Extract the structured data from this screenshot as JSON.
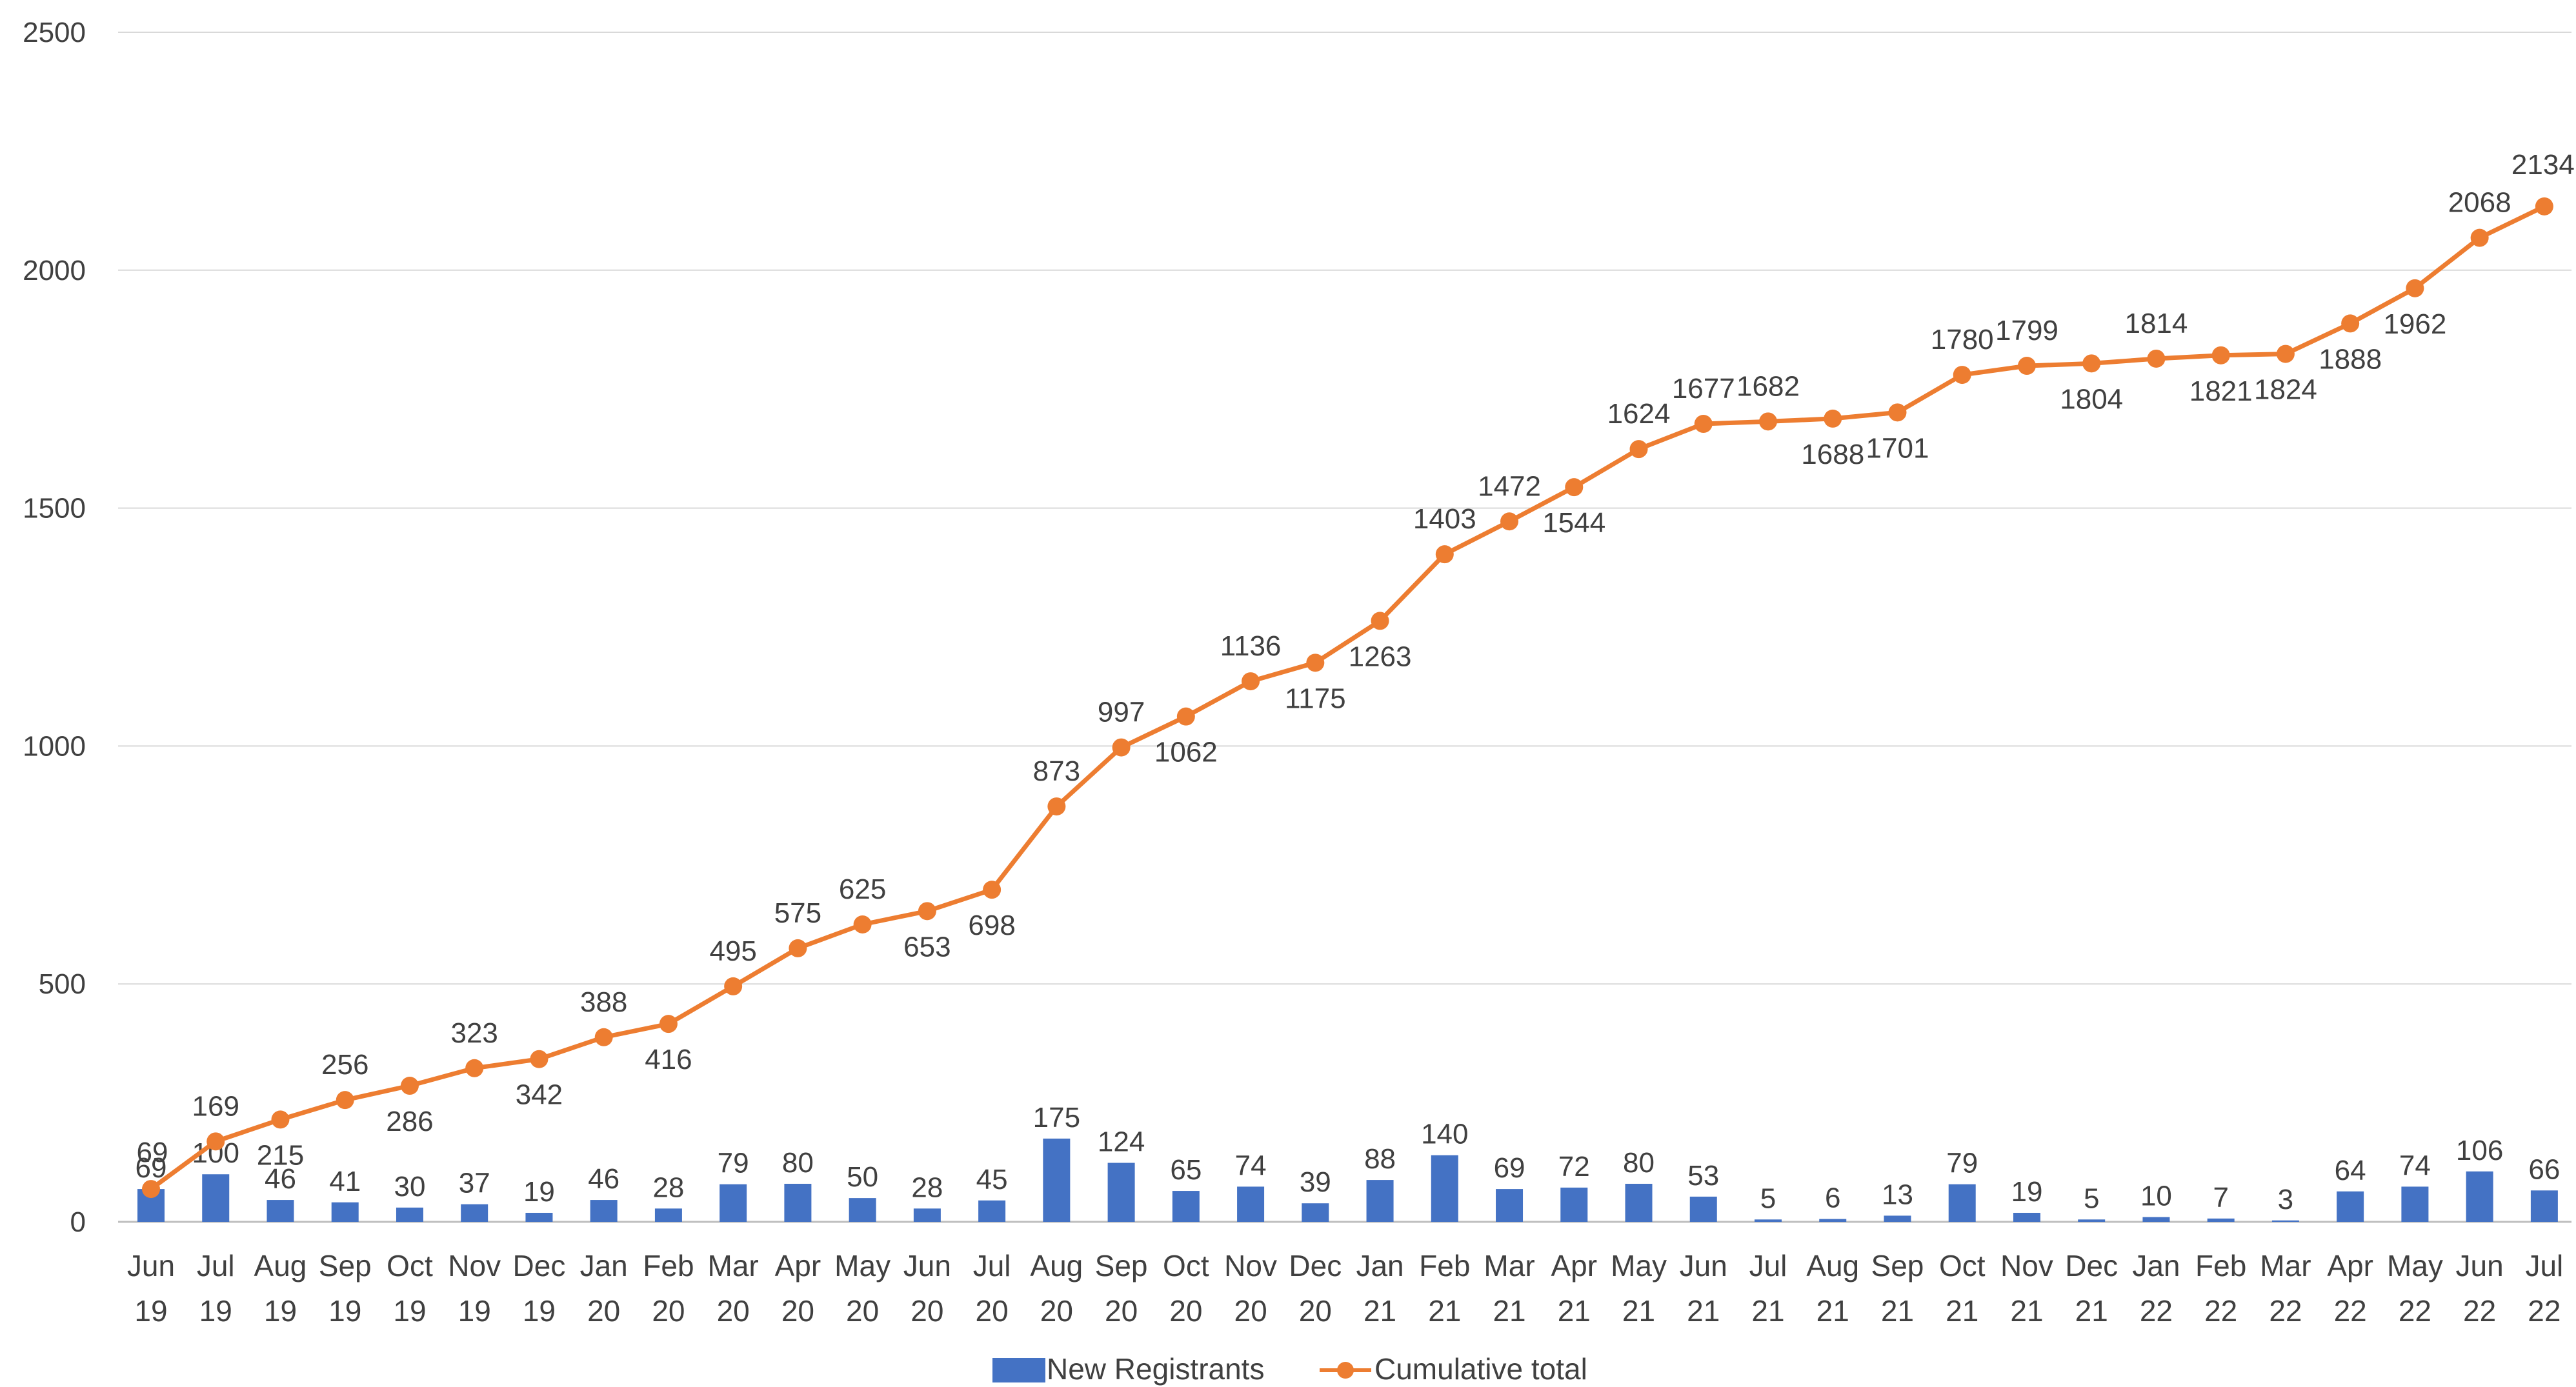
{
  "chart_data": {
    "type": "bar+line",
    "title": "",
    "xlabel": "",
    "ylabel": "",
    "ylim": [
      0,
      2500
    ],
    "yticks": [
      0,
      500,
      1000,
      1500,
      2000,
      2500
    ],
    "grid": "horizontal",
    "legend_position": "bottom",
    "categories": [
      [
        "Jun",
        "19"
      ],
      [
        "Jul",
        "19"
      ],
      [
        "Aug",
        "19"
      ],
      [
        "Sep",
        "19"
      ],
      [
        "Oct",
        "19"
      ],
      [
        "Nov",
        "19"
      ],
      [
        "Dec",
        "19"
      ],
      [
        "Jan",
        "20"
      ],
      [
        "Feb",
        "20"
      ],
      [
        "Mar",
        "20"
      ],
      [
        "Apr",
        "20"
      ],
      [
        "May",
        "20"
      ],
      [
        "Jun",
        "20"
      ],
      [
        "Jul",
        "20"
      ],
      [
        "Aug",
        "20"
      ],
      [
        "Sep",
        "20"
      ],
      [
        "Oct",
        "20"
      ],
      [
        "Nov",
        "20"
      ],
      [
        "Dec",
        "20"
      ],
      [
        "Jan",
        "21"
      ],
      [
        "Feb",
        "21"
      ],
      [
        "Mar",
        "21"
      ],
      [
        "Apr",
        "21"
      ],
      [
        "May",
        "21"
      ],
      [
        "Jun",
        "21"
      ],
      [
        "Jul",
        "21"
      ],
      [
        "Aug",
        "21"
      ],
      [
        "Sep",
        "21"
      ],
      [
        "Oct",
        "21"
      ],
      [
        "Nov",
        "21"
      ],
      [
        "Dec",
        "21"
      ],
      [
        "Jan",
        "22"
      ],
      [
        "Feb",
        "22"
      ],
      [
        "Mar",
        "22"
      ],
      [
        "Apr",
        "22"
      ],
      [
        "May",
        "22"
      ],
      [
        "Jun",
        "22"
      ],
      [
        "Jul",
        "22"
      ]
    ],
    "series": [
      {
        "name": "New Registrants",
        "type": "bar",
        "color": "#4472C4",
        "values": [
          69,
          100,
          46,
          41,
          30,
          37,
          19,
          46,
          28,
          79,
          80,
          50,
          28,
          45,
          175,
          124,
          65,
          74,
          39,
          88,
          140,
          69,
          72,
          80,
          53,
          5,
          6,
          13,
          79,
          19,
          5,
          10,
          7,
          3,
          64,
          74,
          106,
          66
        ]
      },
      {
        "name": "Cumulative total",
        "type": "line",
        "color": "#ED7D31",
        "values": [
          69,
          169,
          215,
          256,
          286,
          323,
          342,
          388,
          416,
          495,
          575,
          625,
          653,
          698,
          873,
          997,
          1062,
          1136,
          1175,
          1263,
          1403,
          1472,
          1544,
          1624,
          1677,
          1682,
          1688,
          1701,
          1780,
          1799,
          1804,
          1814,
          1821,
          1824,
          1888,
          1962,
          2068,
          2134
        ]
      }
    ]
  }
}
